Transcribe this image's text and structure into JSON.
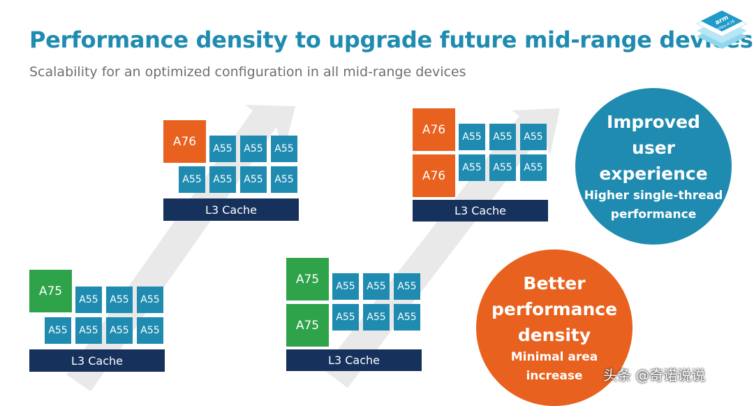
{
  "slide": {
    "title": "Performance density to upgrade future mid-range devices",
    "subtitle": "Scalability for an optimized configuration in all mid-range devices"
  },
  "logo": {
    "brand": "arm",
    "product": "Cortex-A76"
  },
  "clusters": {
    "bottom_left": {
      "big_cores": [
        "A75"
      ],
      "little_cores": [
        "A55",
        "A55",
        "A55",
        "A55",
        "A55",
        "A55",
        "A55"
      ],
      "cache": "L3 Cache"
    },
    "top_middle": {
      "big_cores": [
        "A76"
      ],
      "little_cores": [
        "A55",
        "A55",
        "A55",
        "A55",
        "A55",
        "A55",
        "A55"
      ],
      "cache": "L3 Cache"
    },
    "bottom_middle": {
      "big_cores": [
        "A75",
        "A75"
      ],
      "little_cores": [
        "A55",
        "A55",
        "A55",
        "A55",
        "A55",
        "A55"
      ],
      "cache": "L3 Cache"
    },
    "top_right": {
      "big_cores": [
        "A76",
        "A76"
      ],
      "little_cores": [
        "A55",
        "A55",
        "A55",
        "A55",
        "A55",
        "A55"
      ],
      "cache": "L3 Cache"
    }
  },
  "benefits": {
    "user_experience": {
      "headline": [
        "Improved",
        "user experience"
      ],
      "detail": [
        "Higher single-thread",
        "performance"
      ]
    },
    "density": {
      "headline": [
        "Better",
        "performance",
        "density"
      ],
      "detail": [
        "Minimal area",
        "increase"
      ]
    }
  },
  "watermark": "头条 @奇诺说说",
  "colors": {
    "title": "#1f8bb0",
    "a55": "#1f8bb0",
    "a76": "#e8611e",
    "a75": "#2fa34a",
    "cache": "#16325c",
    "arrow": "#e9e9e9"
  }
}
